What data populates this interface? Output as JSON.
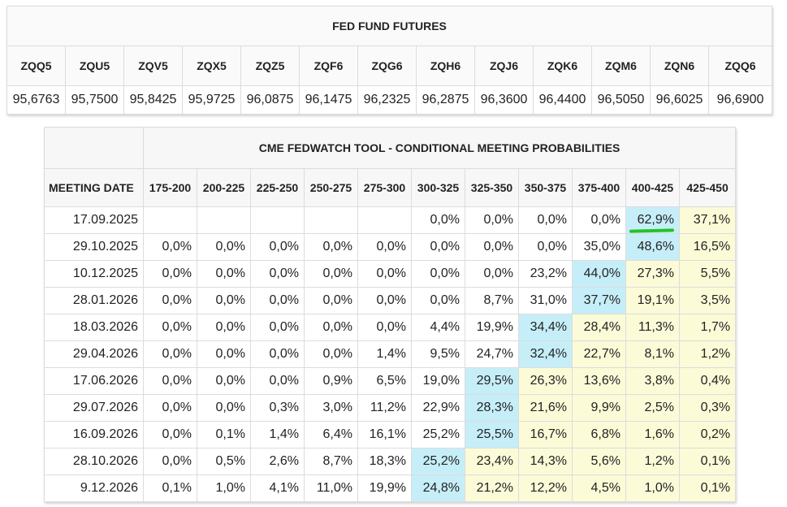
{
  "futures": {
    "title": "FED FUND FUTURES",
    "contracts": [
      "ZQQ5",
      "ZQU5",
      "ZQV5",
      "ZQX5",
      "ZQZ5",
      "ZQF6",
      "ZQG6",
      "ZQH6",
      "ZQJ6",
      "ZQK6",
      "ZQM6",
      "ZQN6",
      "ZQQ6"
    ],
    "prices": [
      "95,6763",
      "95,7500",
      "95,8425",
      "95,9725",
      "96,0875",
      "96,1475",
      "96,2325",
      "96,2875",
      "96,3600",
      "96,4400",
      "96,5050",
      "96,6025",
      "96,6900"
    ]
  },
  "fedwatch": {
    "title": "CME FEDWATCH TOOL - CONDITIONAL MEETING PROBABILITIES",
    "date_header": "MEETING DATE",
    "ranges": [
      "175-200",
      "200-225",
      "225-250",
      "250-275",
      "275-300",
      "300-325",
      "325-350",
      "350-375",
      "375-400",
      "400-425",
      "425-450"
    ],
    "colors": {
      "highlight_max": "#c6eef8",
      "highlight_above": "#fbfbd8",
      "annotation": "#22c42a"
    },
    "rows": [
      {
        "date": "17.09.2025",
        "values": [
          "",
          "",
          "",
          "",
          "",
          "0,0%",
          "0,0%",
          "0,0%",
          "0,0%",
          "62,9%",
          "37,1%"
        ]
      },
      {
        "date": "29.10.2025",
        "values": [
          "0,0%",
          "0,0%",
          "0,0%",
          "0,0%",
          "0,0%",
          "0,0%",
          "0,0%",
          "0,0%",
          "35,0%",
          "48,6%",
          "16,5%"
        ]
      },
      {
        "date": "10.12.2025",
        "values": [
          "0,0%",
          "0,0%",
          "0,0%",
          "0,0%",
          "0,0%",
          "0,0%",
          "0,0%",
          "23,2%",
          "44,0%",
          "27,3%",
          "5,5%"
        ]
      },
      {
        "date": "28.01.2026",
        "values": [
          "0,0%",
          "0,0%",
          "0,0%",
          "0,0%",
          "0,0%",
          "0,0%",
          "8,7%",
          "31,0%",
          "37,7%",
          "19,1%",
          "3,5%"
        ]
      },
      {
        "date": "18.03.2026",
        "values": [
          "0,0%",
          "0,0%",
          "0,0%",
          "0,0%",
          "0,0%",
          "4,4%",
          "19,9%",
          "34,4%",
          "28,4%",
          "11,3%",
          "1,7%"
        ]
      },
      {
        "date": "29.04.2026",
        "values": [
          "0,0%",
          "0,0%",
          "0,0%",
          "0,0%",
          "1,4%",
          "9,5%",
          "24,7%",
          "32,4%",
          "22,7%",
          "8,1%",
          "1,2%"
        ]
      },
      {
        "date": "17.06.2026",
        "values": [
          "0,0%",
          "0,0%",
          "0,0%",
          "0,9%",
          "6,5%",
          "19,0%",
          "29,5%",
          "26,3%",
          "13,6%",
          "3,8%",
          "0,4%"
        ]
      },
      {
        "date": "29.07.2026",
        "values": [
          "0,0%",
          "0,0%",
          "0,3%",
          "3,0%",
          "11,2%",
          "22,9%",
          "28,3%",
          "21,6%",
          "9,9%",
          "2,5%",
          "0,3%"
        ]
      },
      {
        "date": "16.09.2026",
        "values": [
          "0,0%",
          "0,1%",
          "1,4%",
          "6,4%",
          "16,1%",
          "25,2%",
          "25,5%",
          "16,7%",
          "6,8%",
          "1,6%",
          "0,2%"
        ]
      },
      {
        "date": "28.10.2026",
        "values": [
          "0,0%",
          "0,5%",
          "2,6%",
          "8,7%",
          "18,3%",
          "25,2%",
          "23,4%",
          "14,3%",
          "5,6%",
          "1,2%",
          "0,1%"
        ]
      },
      {
        "date": "9.12.2026",
        "values": [
          "0,1%",
          "1,0%",
          "4,1%",
          "11,0%",
          "19,9%",
          "24,8%",
          "21,2%",
          "12,2%",
          "4,5%",
          "1,0%",
          "0,1%"
        ]
      }
    ],
    "highlight_max_index": [
      9,
      9,
      8,
      8,
      7,
      7,
      6,
      6,
      6,
      5,
      5
    ]
  }
}
